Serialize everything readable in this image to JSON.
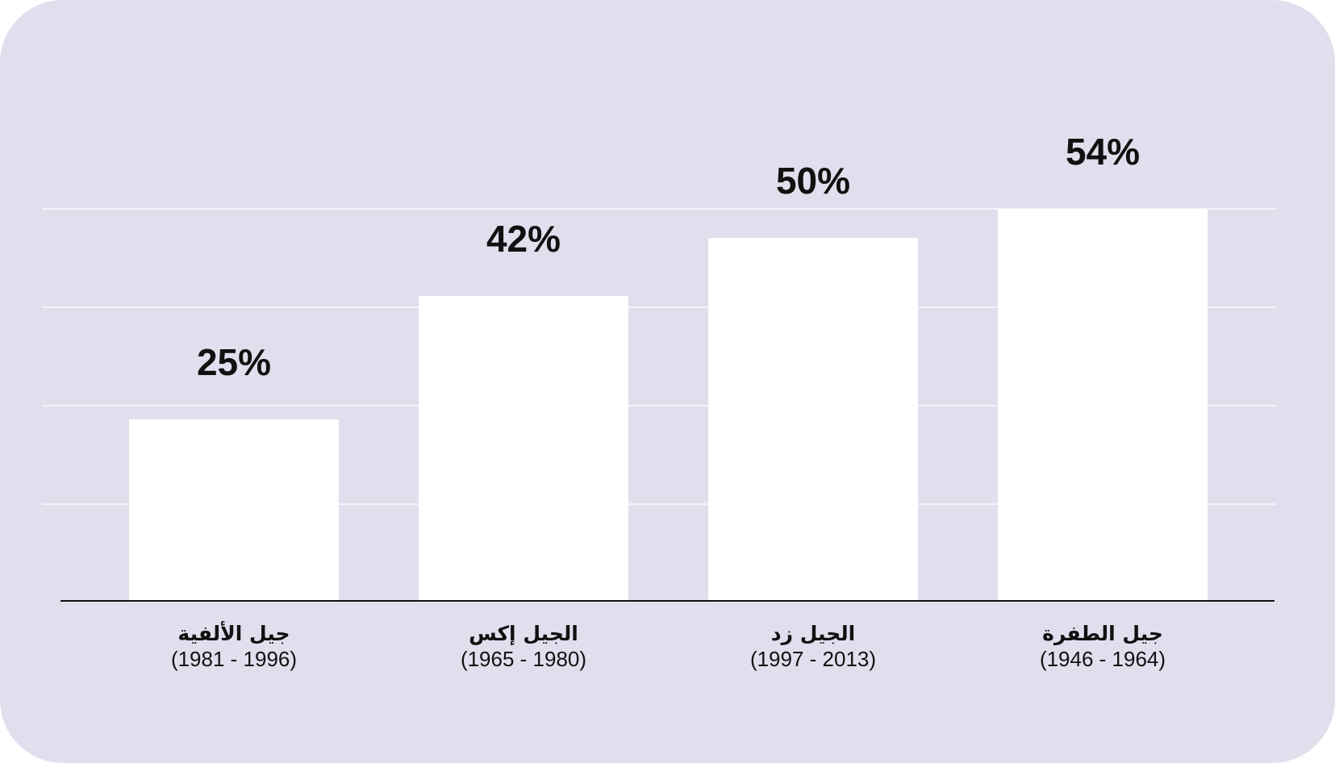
{
  "chart_data": {
    "type": "bar",
    "categories": [
      "جيل الألفية",
      "الجيل إكس",
      "الجيل زد",
      "جيل الطفرة"
    ],
    "years": [
      "(1981 - 1996)",
      "(1965 - 1980)",
      "(1997 - 2013)",
      "(1946 - 1964)"
    ],
    "values": [
      25,
      42,
      50,
      54
    ],
    "value_labels": [
      "25%",
      "42%",
      "50%",
      "54%"
    ],
    "title": "",
    "xlabel": "",
    "ylabel": "",
    "ylim": [
      0,
      54
    ],
    "grid": true,
    "legend": "none",
    "colors": {
      "background": "#e2deed",
      "bar": "#ffffff",
      "text": "#111111"
    }
  }
}
